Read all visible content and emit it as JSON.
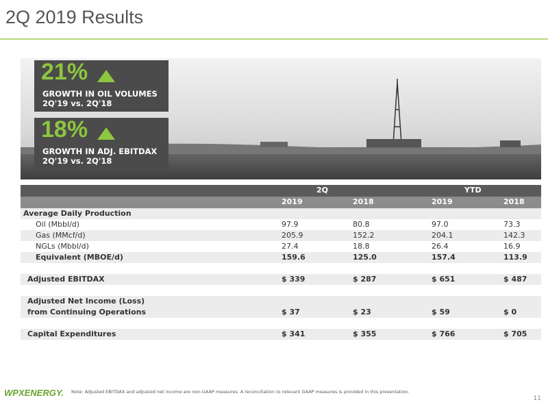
{
  "header": {
    "title": "2Q 2019 Results"
  },
  "callouts": [
    {
      "value": "21%",
      "label": "GROWTH IN OIL VOLUMES",
      "period": "2Q'19 vs. 2Q'18"
    },
    {
      "value": "18%",
      "label": "GROWTH IN ADJ. EBITDAX",
      "period": "2Q'19 vs. 2Q'18"
    }
  ],
  "table": {
    "groups": [
      "2Q",
      "YTD"
    ],
    "columns": [
      "2019",
      "2018",
      "2019",
      "2018"
    ],
    "rows": [
      {
        "label": [
          "Average Daily Production"
        ]
      },
      {
        "label": [
          "Oil (Mbbl/d)"
        ],
        "values": [
          "97.9",
          "80.8",
          "97.0",
          "73.3"
        ]
      },
      {
        "label": [
          "Gas (MMcf/d)"
        ],
        "values": [
          "205.9",
          "152.2",
          "204.1",
          "142.3"
        ]
      },
      {
        "label": [
          "NGLs (Mbbl/d)"
        ],
        "values": [
          "27.4",
          "18.8",
          "26.4",
          "16.9"
        ]
      },
      {
        "label": [
          "Equivalent (MBOE/d)"
        ],
        "values": [
          "159.6",
          "125.0",
          "157.4",
          "113.9"
        ]
      },
      {
        "label": [
          "Adjusted EBITDAX"
        ],
        "values": [
          "$ 339",
          "$ 287",
          "$ 651",
          "$ 487"
        ]
      },
      {
        "label": [
          "Adjusted Net Income (Loss)",
          "from Continuing Operations"
        ],
        "values": [
          "$ 37",
          "$ 23",
          "$ 59",
          "$ 0"
        ]
      },
      {
        "label": [
          "Capital Expenditures"
        ],
        "values": [
          "$ 341",
          "$ 355",
          "$ 766",
          "$ 705"
        ]
      }
    ]
  },
  "footer": {
    "logo": "WPXENERGY.",
    "note": "Note: Adjusted EBITDAX and adjusted net income are non-GAAP measures.  A reconciliation to relevant GAAP measures is provided in this presentation.",
    "page": "11"
  }
}
